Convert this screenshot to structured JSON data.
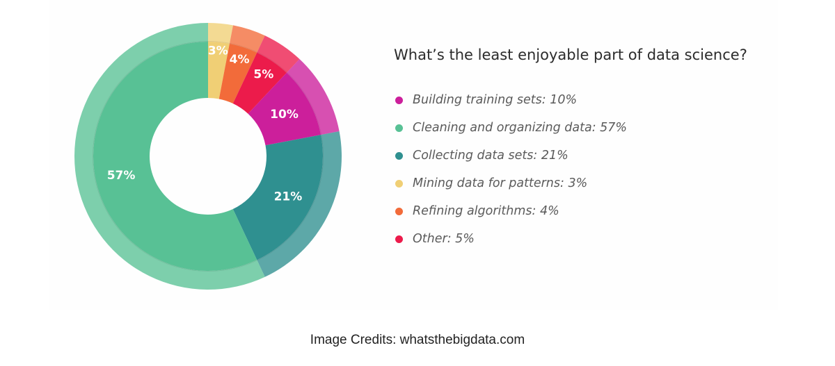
{
  "chart_data": {
    "type": "pie",
    "title": "What’s the least enjoyable part of data science?",
    "slices": [
      {
        "name": "Mining data for patterns",
        "value": 3,
        "label": "3%",
        "legend": "Mining data for patterns: 3%",
        "color": "#f0cf75"
      },
      {
        "name": "Refining algorithms",
        "value": 4,
        "label": "4%",
        "legend": "Refining algorithms: 4%",
        "color": "#f26b3a"
      },
      {
        "name": "Other",
        "value": 5,
        "label": "5%",
        "legend": "Other: 5%",
        "color": "#ec1b4b"
      },
      {
        "name": "Building training sets",
        "value": 10,
        "label": "10%",
        "legend": "Building training sets: 10%",
        "color": "#cc1f9b"
      },
      {
        "name": "Collecting data sets",
        "value": 21,
        "label": "21%",
        "legend": "Collecting data sets: 21%",
        "color": "#2f9090"
      },
      {
        "name": "Cleaning and organizing data",
        "value": 57,
        "label": "57%",
        "legend": "Cleaning and organizing data: 57%",
        "color": "#58c195"
      }
    ],
    "legend_order": [
      "Building training sets",
      "Cleaning and organizing data",
      "Collecting data sets",
      "Mining data for patterns",
      "Refining algorithms",
      "Other"
    ],
    "legend_position": "right"
  },
  "credits": "Image Credits: whatsthebigdata.com"
}
